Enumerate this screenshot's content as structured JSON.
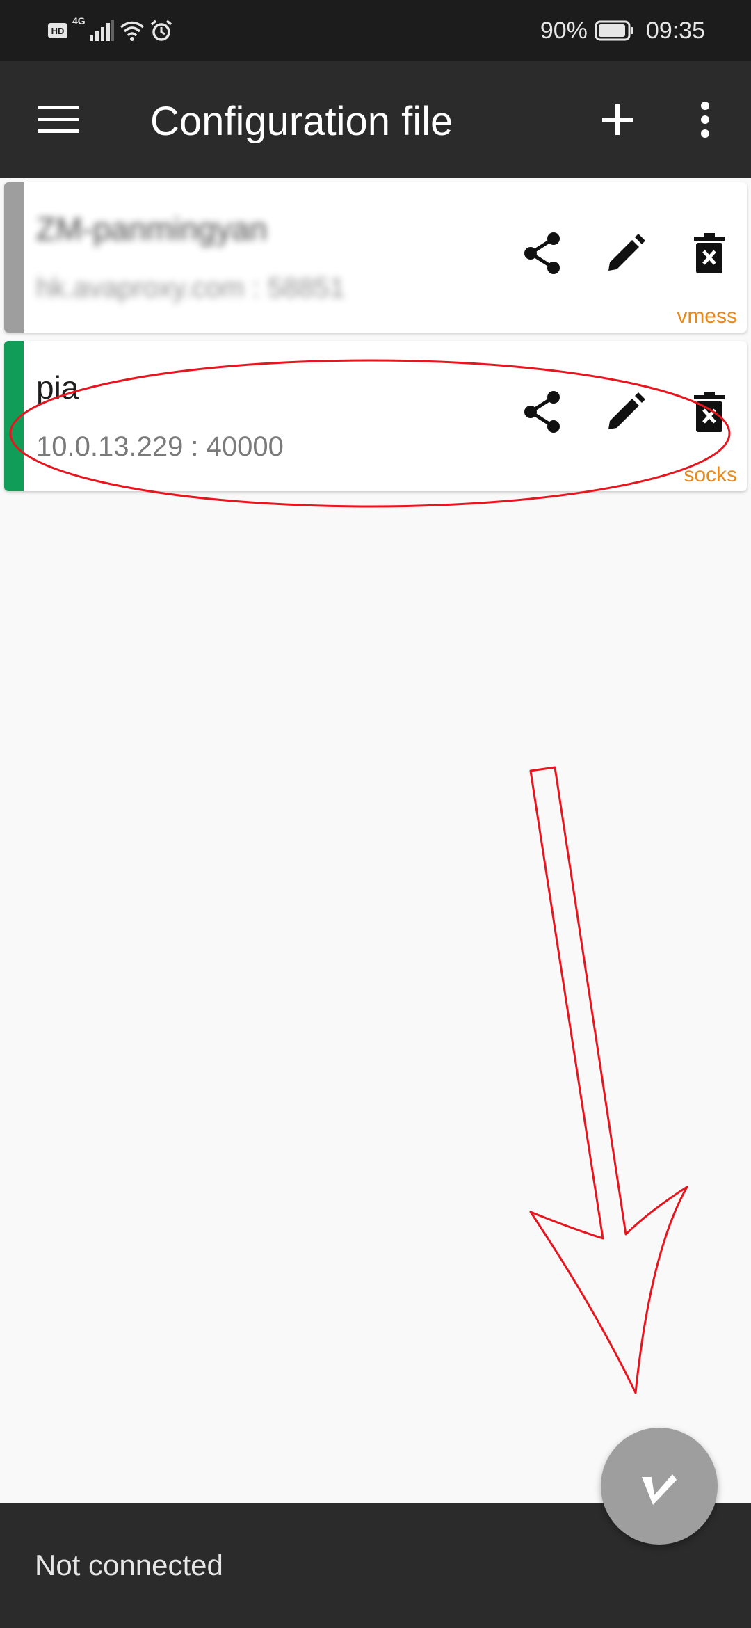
{
  "statusbar": {
    "network": "4G",
    "battery": "90%",
    "time": "09:35",
    "icons": [
      "hd-icon",
      "signal-icon",
      "wifi-icon",
      "alarm-icon",
      "battery-icon"
    ]
  },
  "appbar": {
    "title": "Configuration file",
    "icons": [
      "menu-icon",
      "add-icon",
      "more-vert-icon"
    ]
  },
  "configs": [
    {
      "name": "ZM-panmingyan",
      "address": "hk.avaproxy.com : 58851",
      "type": "vmess",
      "selected": false,
      "indicator_color": "#9e9e9e"
    },
    {
      "name": "pia",
      "address": "10.0.13.229 : 40000",
      "type": "socks",
      "selected": true,
      "indicator_color": "#0f9d58"
    }
  ],
  "card_actions": [
    "share-icon",
    "edit-icon",
    "delete-icon"
  ],
  "colors": {
    "appbar": "#2b2b2b",
    "statusbar": "#1c1c1c",
    "type_label": "#e8891a",
    "annotation": "#e8141e",
    "fab": "#9e9e9e"
  },
  "bottom": {
    "status": "Not connected"
  }
}
